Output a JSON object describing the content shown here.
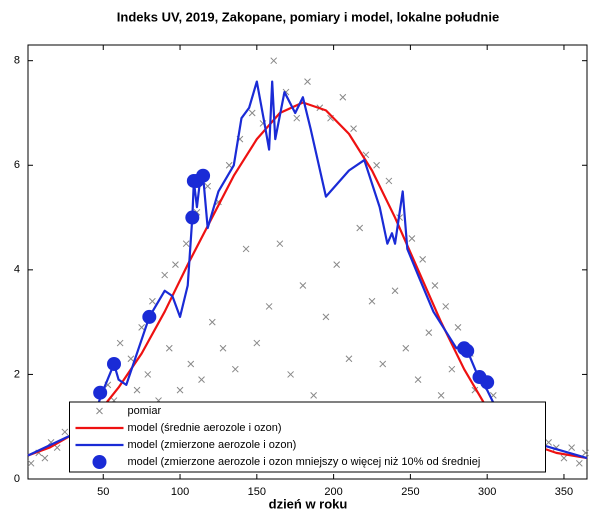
{
  "chart_data": {
    "type": "line",
    "title": "Indeks UV, 2019, Zakopane, pomiary i model, lokalne południe",
    "x_label": "dzień w roku",
    "xlim": [
      1,
      365
    ],
    "xticks": [
      50,
      100,
      150,
      200,
      250,
      300,
      350
    ],
    "ylim": [
      0,
      8.3
    ],
    "yticks": [
      0,
      2,
      4,
      6,
      8
    ],
    "legend": "lower center",
    "series": [
      {
        "name": "pomiar",
        "color": "#888888",
        "style": "cross",
        "x": [
          3,
          8,
          12,
          16,
          20,
          25,
          30,
          34,
          38,
          42,
          46,
          50,
          53,
          57,
          61,
          64,
          68,
          72,
          75,
          79,
          82,
          86,
          90,
          93,
          97,
          100,
          104,
          107,
          111,
          114,
          118,
          121,
          125,
          128,
          132,
          136,
          139,
          143,
          147,
          150,
          154,
          158,
          161,
          165,
          169,
          172,
          176,
          180,
          183,
          187,
          191,
          195,
          198,
          202,
          206,
          210,
          213,
          217,
          221,
          225,
          228,
          232,
          236,
          240,
          243,
          247,
          251,
          255,
          258,
          262,
          266,
          270,
          273,
          277,
          281,
          285,
          289,
          292,
          296,
          300,
          304,
          308,
          312,
          316,
          320,
          325,
          330,
          335,
          340,
          345,
          350,
          355,
          360,
          364
        ],
        "values": [
          0.3,
          0.5,
          0.4,
          0.7,
          0.6,
          0.9,
          0.5,
          0.8,
          1.1,
          0.7,
          1.4,
          1.0,
          1.8,
          1.5,
          2.6,
          1.2,
          2.3,
          1.7,
          2.9,
          2.0,
          3.4,
          1.5,
          3.9,
          2.5,
          4.1,
          1.7,
          4.5,
          2.2,
          5.1,
          1.9,
          5.6,
          3.0,
          5.3,
          2.5,
          6.0,
          2.1,
          6.5,
          4.4,
          7.0,
          2.6,
          6.8,
          3.3,
          8.0,
          4.5,
          7.4,
          2.0,
          6.9,
          3.7,
          7.6,
          1.6,
          7.1,
          3.1,
          6.9,
          4.1,
          7.3,
          2.3,
          6.7,
          4.8,
          6.2,
          3.4,
          6.0,
          2.2,
          5.7,
          3.6,
          5.0,
          2.5,
          4.6,
          1.9,
          4.2,
          2.8,
          3.7,
          1.6,
          3.3,
          2.1,
          2.9,
          1.3,
          2.4,
          1.7,
          1.9,
          1.1,
          1.6,
          0.9,
          1.3,
          0.8,
          1.0,
          0.7,
          0.9,
          0.5,
          0.7,
          0.6,
          0.4,
          0.6,
          0.3,
          0.5
        ]
      },
      {
        "name": "model (średnie aerozole i ozon)",
        "color": "#ee1111",
        "style": "line",
        "x": [
          1,
          15,
          30,
          45,
          60,
          75,
          90,
          105,
          120,
          135,
          150,
          165,
          180,
          195,
          210,
          225,
          240,
          255,
          270,
          285,
          300,
          315,
          330,
          345,
          365
        ],
        "values": [
          0.45,
          0.6,
          0.85,
          1.2,
          1.75,
          2.4,
          3.2,
          4.1,
          4.95,
          5.8,
          6.5,
          7.0,
          7.2,
          7.05,
          6.6,
          5.9,
          5.0,
          4.0,
          3.0,
          2.1,
          1.35,
          0.9,
          0.65,
          0.5,
          0.4
        ]
      },
      {
        "name": "model (zmierzone aerozole i ozon)",
        "color": "#1a2bd6",
        "style": "line",
        "x": [
          1,
          30,
          45,
          50,
          57,
          60,
          65,
          80,
          90,
          95,
          100,
          105,
          108,
          109,
          111,
          113,
          115,
          118,
          125,
          135,
          140,
          145,
          150,
          155,
          158,
          160,
          162,
          168,
          175,
          180,
          185,
          195,
          210,
          220,
          230,
          235,
          238,
          240,
          245,
          248,
          255,
          265,
          280,
          285,
          295,
          300,
          310,
          330,
          365
        ],
        "values": [
          0.45,
          0.85,
          1.3,
          1.7,
          2.2,
          1.9,
          1.8,
          3.1,
          3.6,
          3.5,
          3.1,
          3.7,
          5.0,
          5.7,
          5.2,
          5.7,
          5.8,
          4.8,
          5.5,
          6.0,
          6.9,
          7.1,
          7.6,
          6.8,
          6.3,
          7.6,
          6.5,
          7.4,
          7.0,
          7.3,
          6.7,
          5.4,
          5.9,
          6.1,
          5.2,
          4.5,
          4.7,
          4.5,
          5.5,
          4.4,
          3.9,
          3.2,
          2.5,
          2.6,
          1.9,
          1.7,
          1.1,
          0.7,
          0.4
        ]
      },
      {
        "name": "model (zmierzone aerozole i ozon mniejszy o więcej niż 10% od średniej",
        "color": "#1a2bd6",
        "style": "dot",
        "x": [
          48,
          57,
          80,
          108,
          109,
          111,
          115,
          285,
          287,
          295,
          300
        ],
        "values": [
          1.65,
          2.2,
          3.1,
          5.0,
          5.7,
          5.7,
          5.8,
          2.5,
          2.45,
          1.95,
          1.85
        ]
      }
    ]
  }
}
